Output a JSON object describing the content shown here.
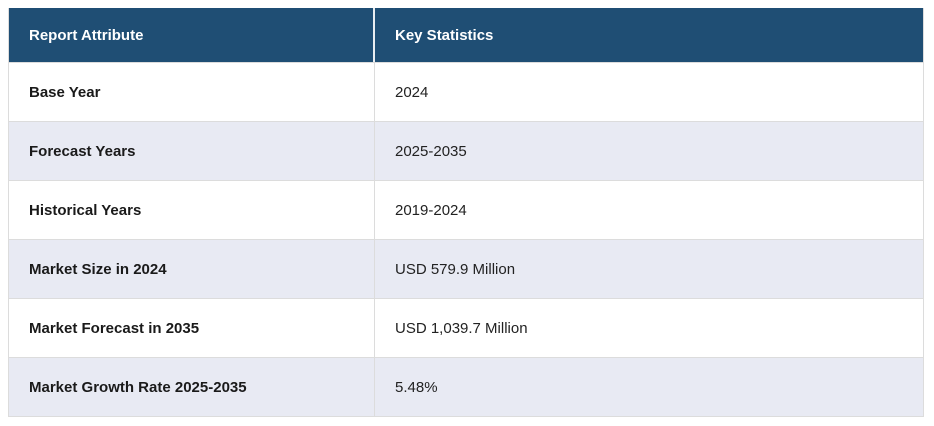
{
  "table": {
    "columns": {
      "attribute": "Report Attribute",
      "statistics": "Key Statistics"
    },
    "rows": [
      {
        "attribute": "Base Year",
        "value": "2024"
      },
      {
        "attribute": "Forecast Years",
        "value": "2025-2035"
      },
      {
        "attribute": "Historical Years",
        "value": "2019-2024"
      },
      {
        "attribute": "Market Size in 2024",
        "value": "USD 579.9 Million"
      },
      {
        "attribute": "Market Forecast in 2035",
        "value": "USD 1,039.7 Million"
      },
      {
        "attribute": "Market Growth Rate 2025-2035",
        "value": "5.48%"
      }
    ]
  },
  "colors": {
    "header_background": "#1f4e74",
    "header_text": "#ffffff",
    "alt_row_background": "#e8eaf3",
    "row_background": "#ffffff",
    "border": "#dcdcdc",
    "label_text": "#1a1a1a",
    "value_text": "#222222"
  },
  "chart_data": {
    "type": "table",
    "title": "",
    "columns": [
      "Report Attribute",
      "Key Statistics"
    ],
    "rows": [
      [
        "Base Year",
        "2024"
      ],
      [
        "Forecast Years",
        "2025-2035"
      ],
      [
        "Historical Years",
        "2019-2024"
      ],
      [
        "Market Size in 2024",
        "USD 579.9 Million"
      ],
      [
        "Market Forecast in 2035",
        "USD 1,039.7 Million"
      ],
      [
        "Market Growth Rate 2025-2035",
        "5.48%"
      ]
    ],
    "numeric_facts": {
      "market_size_2024_usd_million": 579.9,
      "market_forecast_2035_usd_million": 1039.7,
      "cagr_2025_2035_percent": 5.48
    }
  }
}
